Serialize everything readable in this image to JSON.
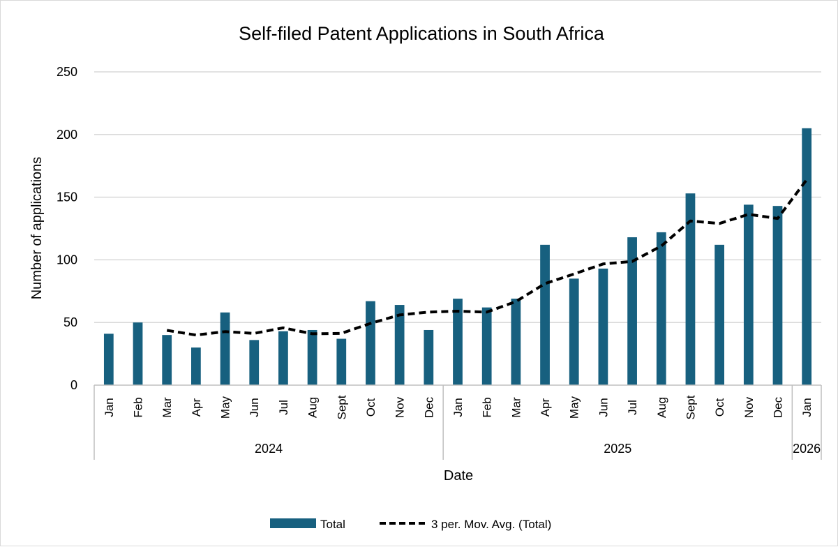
{
  "chart_data": {
    "type": "bar",
    "title": "Self-filed Patent Applications in South Africa",
    "xlabel": "Date",
    "ylabel": "Number of applications",
    "ylim": [
      0,
      250
    ],
    "yticks": [
      0,
      50,
      100,
      150,
      200,
      250
    ],
    "grid": true,
    "legend_position": "bottom",
    "categories": [
      "Jan",
      "Feb",
      "Mar",
      "Apr",
      "May",
      "Jun",
      "Jul",
      "Aug",
      "Sept",
      "Oct",
      "Nov",
      "Dec",
      "Jan",
      "Feb",
      "Mar",
      "Apr",
      "May",
      "Jun",
      "Jul",
      "Aug",
      "Sept",
      "Oct",
      "Nov",
      "Dec",
      "Jan"
    ],
    "year_groups": [
      {
        "label": "2024",
        "start": 0,
        "end": 11
      },
      {
        "label": "2025",
        "start": 12,
        "end": 23
      },
      {
        "label": "2026",
        "start": 24,
        "end": 24
      }
    ],
    "series": [
      {
        "name": "Total",
        "type": "bar",
        "color": "#17607f",
        "values": [
          41,
          50,
          40,
          30,
          58,
          36,
          43,
          44,
          37,
          67,
          64,
          44,
          69,
          62,
          69,
          112,
          85,
          93,
          118,
          122,
          153,
          112,
          144,
          143,
          205
        ]
      },
      {
        "name": "3 per. Mov. Avg. (Total)",
        "type": "line",
        "style": "dashed",
        "color": "#000000",
        "values": [
          null,
          null,
          43.7,
          40.0,
          42.7,
          41.3,
          45.7,
          41.0,
          41.3,
          49.3,
          56.0,
          58.3,
          59.0,
          58.3,
          66.7,
          81.0,
          88.7,
          96.7,
          98.7,
          111.0,
          131.0,
          129.0,
          136.3,
          133.0,
          164.0
        ]
      }
    ]
  }
}
